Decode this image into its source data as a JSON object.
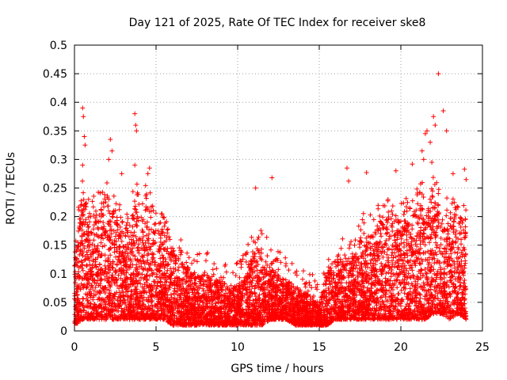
{
  "chart_data": {
    "type": "scatter",
    "title": "Day 121 of 2025, Rate Of TEC Index for receiver ske8",
    "xlabel": "GPS time / hours",
    "ylabel": "ROTI / TECUs",
    "xlim": [
      0,
      25
    ],
    "ylim": [
      0,
      0.5
    ],
    "x_ticks": [
      "0",
      "5",
      "10",
      "15",
      "20",
      "25"
    ],
    "y_ticks": [
      "0",
      "0.05",
      "0.1",
      "0.15",
      "0.2",
      "0.25",
      "0.3",
      "0.35",
      "0.4",
      "0.45",
      "0.5"
    ],
    "x_tick_values": [
      0,
      5,
      10,
      15,
      20,
      25
    ],
    "y_tick_values": [
      0,
      0.05,
      0.1,
      0.15,
      0.2,
      0.25,
      0.3,
      0.35,
      0.4,
      0.45,
      0.5
    ],
    "grid": true,
    "marker": "+",
    "color": "#ff0000",
    "envelope_hours": [
      0,
      0.5,
      1,
      1.5,
      2,
      2.5,
      3,
      3.5,
      4,
      4.5,
      5,
      5.5,
      6,
      6.5,
      7,
      7.5,
      8,
      8.5,
      9,
      9.5,
      10,
      10.5,
      11,
      11.5,
      12,
      12.5,
      13,
      13.5,
      14,
      14.5,
      15,
      15.5,
      16,
      16.5,
      17,
      17.5,
      18,
      18.5,
      19,
      19.5,
      20,
      20.5,
      21,
      21.5,
      22,
      22.5,
      23,
      23.5,
      24
    ],
    "envelope_typical_max_roti": [
      0.12,
      0.25,
      0.2,
      0.22,
      0.24,
      0.2,
      0.17,
      0.2,
      0.23,
      0.22,
      0.18,
      0.16,
      0.15,
      0.12,
      0.11,
      0.1,
      0.1,
      0.09,
      0.09,
      0.08,
      0.08,
      0.1,
      0.15,
      0.14,
      0.12,
      0.1,
      0.09,
      0.08,
      0.07,
      0.06,
      0.05,
      0.1,
      0.13,
      0.14,
      0.12,
      0.17,
      0.16,
      0.18,
      0.2,
      0.19,
      0.2,
      0.19,
      0.22,
      0.22,
      0.25,
      0.2,
      0.22,
      0.22,
      0.2
    ],
    "envelope_typical_min_roti": [
      0.01,
      0.02,
      0.02,
      0.02,
      0.02,
      0.02,
      0.02,
      0.02,
      0.02,
      0.02,
      0.02,
      0.02,
      0.01,
      0.01,
      0.01,
      0.01,
      0.01,
      0.01,
      0.01,
      0.01,
      0.01,
      0.01,
      0.01,
      0.01,
      0.02,
      0.02,
      0.02,
      0.01,
      0.01,
      0.01,
      0.01,
      0.01,
      0.02,
      0.02,
      0.02,
      0.02,
      0.02,
      0.02,
      0.02,
      0.02,
      0.02,
      0.02,
      0.02,
      0.02,
      0.03,
      0.03,
      0.02,
      0.03,
      0.02
    ],
    "notable_points": [
      {
        "x": 0.5,
        "y": 0.39
      },
      {
        "x": 0.55,
        "y": 0.375
      },
      {
        "x": 0.6,
        "y": 0.34
      },
      {
        "x": 0.65,
        "y": 0.325
      },
      {
        "x": 0.5,
        "y": 0.29
      },
      {
        "x": 2.2,
        "y": 0.335
      },
      {
        "x": 2.3,
        "y": 0.315
      },
      {
        "x": 2.1,
        "y": 0.3
      },
      {
        "x": 2.9,
        "y": 0.275
      },
      {
        "x": 3.7,
        "y": 0.38
      },
      {
        "x": 3.75,
        "y": 0.36
      },
      {
        "x": 3.8,
        "y": 0.35
      },
      {
        "x": 3.7,
        "y": 0.29
      },
      {
        "x": 4.6,
        "y": 0.285
      },
      {
        "x": 4.5,
        "y": 0.275
      },
      {
        "x": 12.1,
        "y": 0.268
      },
      {
        "x": 11.1,
        "y": 0.25
      },
      {
        "x": 16.7,
        "y": 0.285
      },
      {
        "x": 16.8,
        "y": 0.262
      },
      {
        "x": 17.9,
        "y": 0.277
      },
      {
        "x": 19.7,
        "y": 0.28
      },
      {
        "x": 20.7,
        "y": 0.292
      },
      {
        "x": 21.3,
        "y": 0.315
      },
      {
        "x": 21.4,
        "y": 0.3
      },
      {
        "x": 21.5,
        "y": 0.345
      },
      {
        "x": 21.6,
        "y": 0.35
      },
      {
        "x": 21.8,
        "y": 0.33
      },
      {
        "x": 21.9,
        "y": 0.295
      },
      {
        "x": 22.0,
        "y": 0.375
      },
      {
        "x": 22.1,
        "y": 0.36
      },
      {
        "x": 22.3,
        "y": 0.45
      },
      {
        "x": 22.6,
        "y": 0.385
      },
      {
        "x": 22.8,
        "y": 0.35
      },
      {
        "x": 23.2,
        "y": 0.275
      },
      {
        "x": 23.9,
        "y": 0.283
      },
      {
        "x": 24.0,
        "y": 0.265
      }
    ]
  }
}
